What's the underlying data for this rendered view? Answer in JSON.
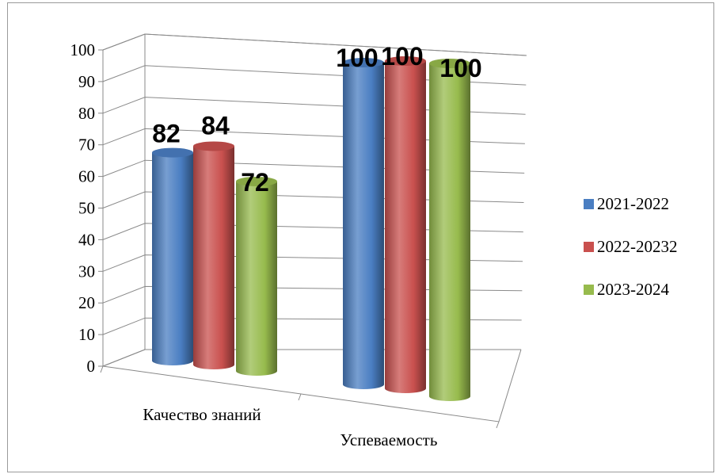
{
  "chart_data": {
    "type": "bar",
    "style": "3d-cylinder",
    "categories": [
      "Качество знаний",
      "Успеваемость"
    ],
    "series": [
      {
        "name": "2021-2022",
        "values": [
          82,
          100
        ],
        "color": "#4a7ec2"
      },
      {
        "name": "2022-20232",
        "values": [
          84,
          100
        ],
        "color": "#c9504e"
      },
      {
        "name": "2023-2024",
        "values": [
          72,
          100
        ],
        "color": "#97bb4d"
      }
    ],
    "data_labels": [
      [
        "82",
        "100"
      ],
      [
        "84",
        "100"
      ],
      [
        "72",
        "100"
      ]
    ],
    "ylim": [
      0,
      100
    ],
    "yticks": [
      "0",
      "10",
      "20",
      "30",
      "40",
      "50",
      "60",
      "70",
      "80",
      "90",
      "100"
    ],
    "grid": true,
    "legend_position": "right",
    "title": "",
    "xlabel": "",
    "ylabel": ""
  }
}
